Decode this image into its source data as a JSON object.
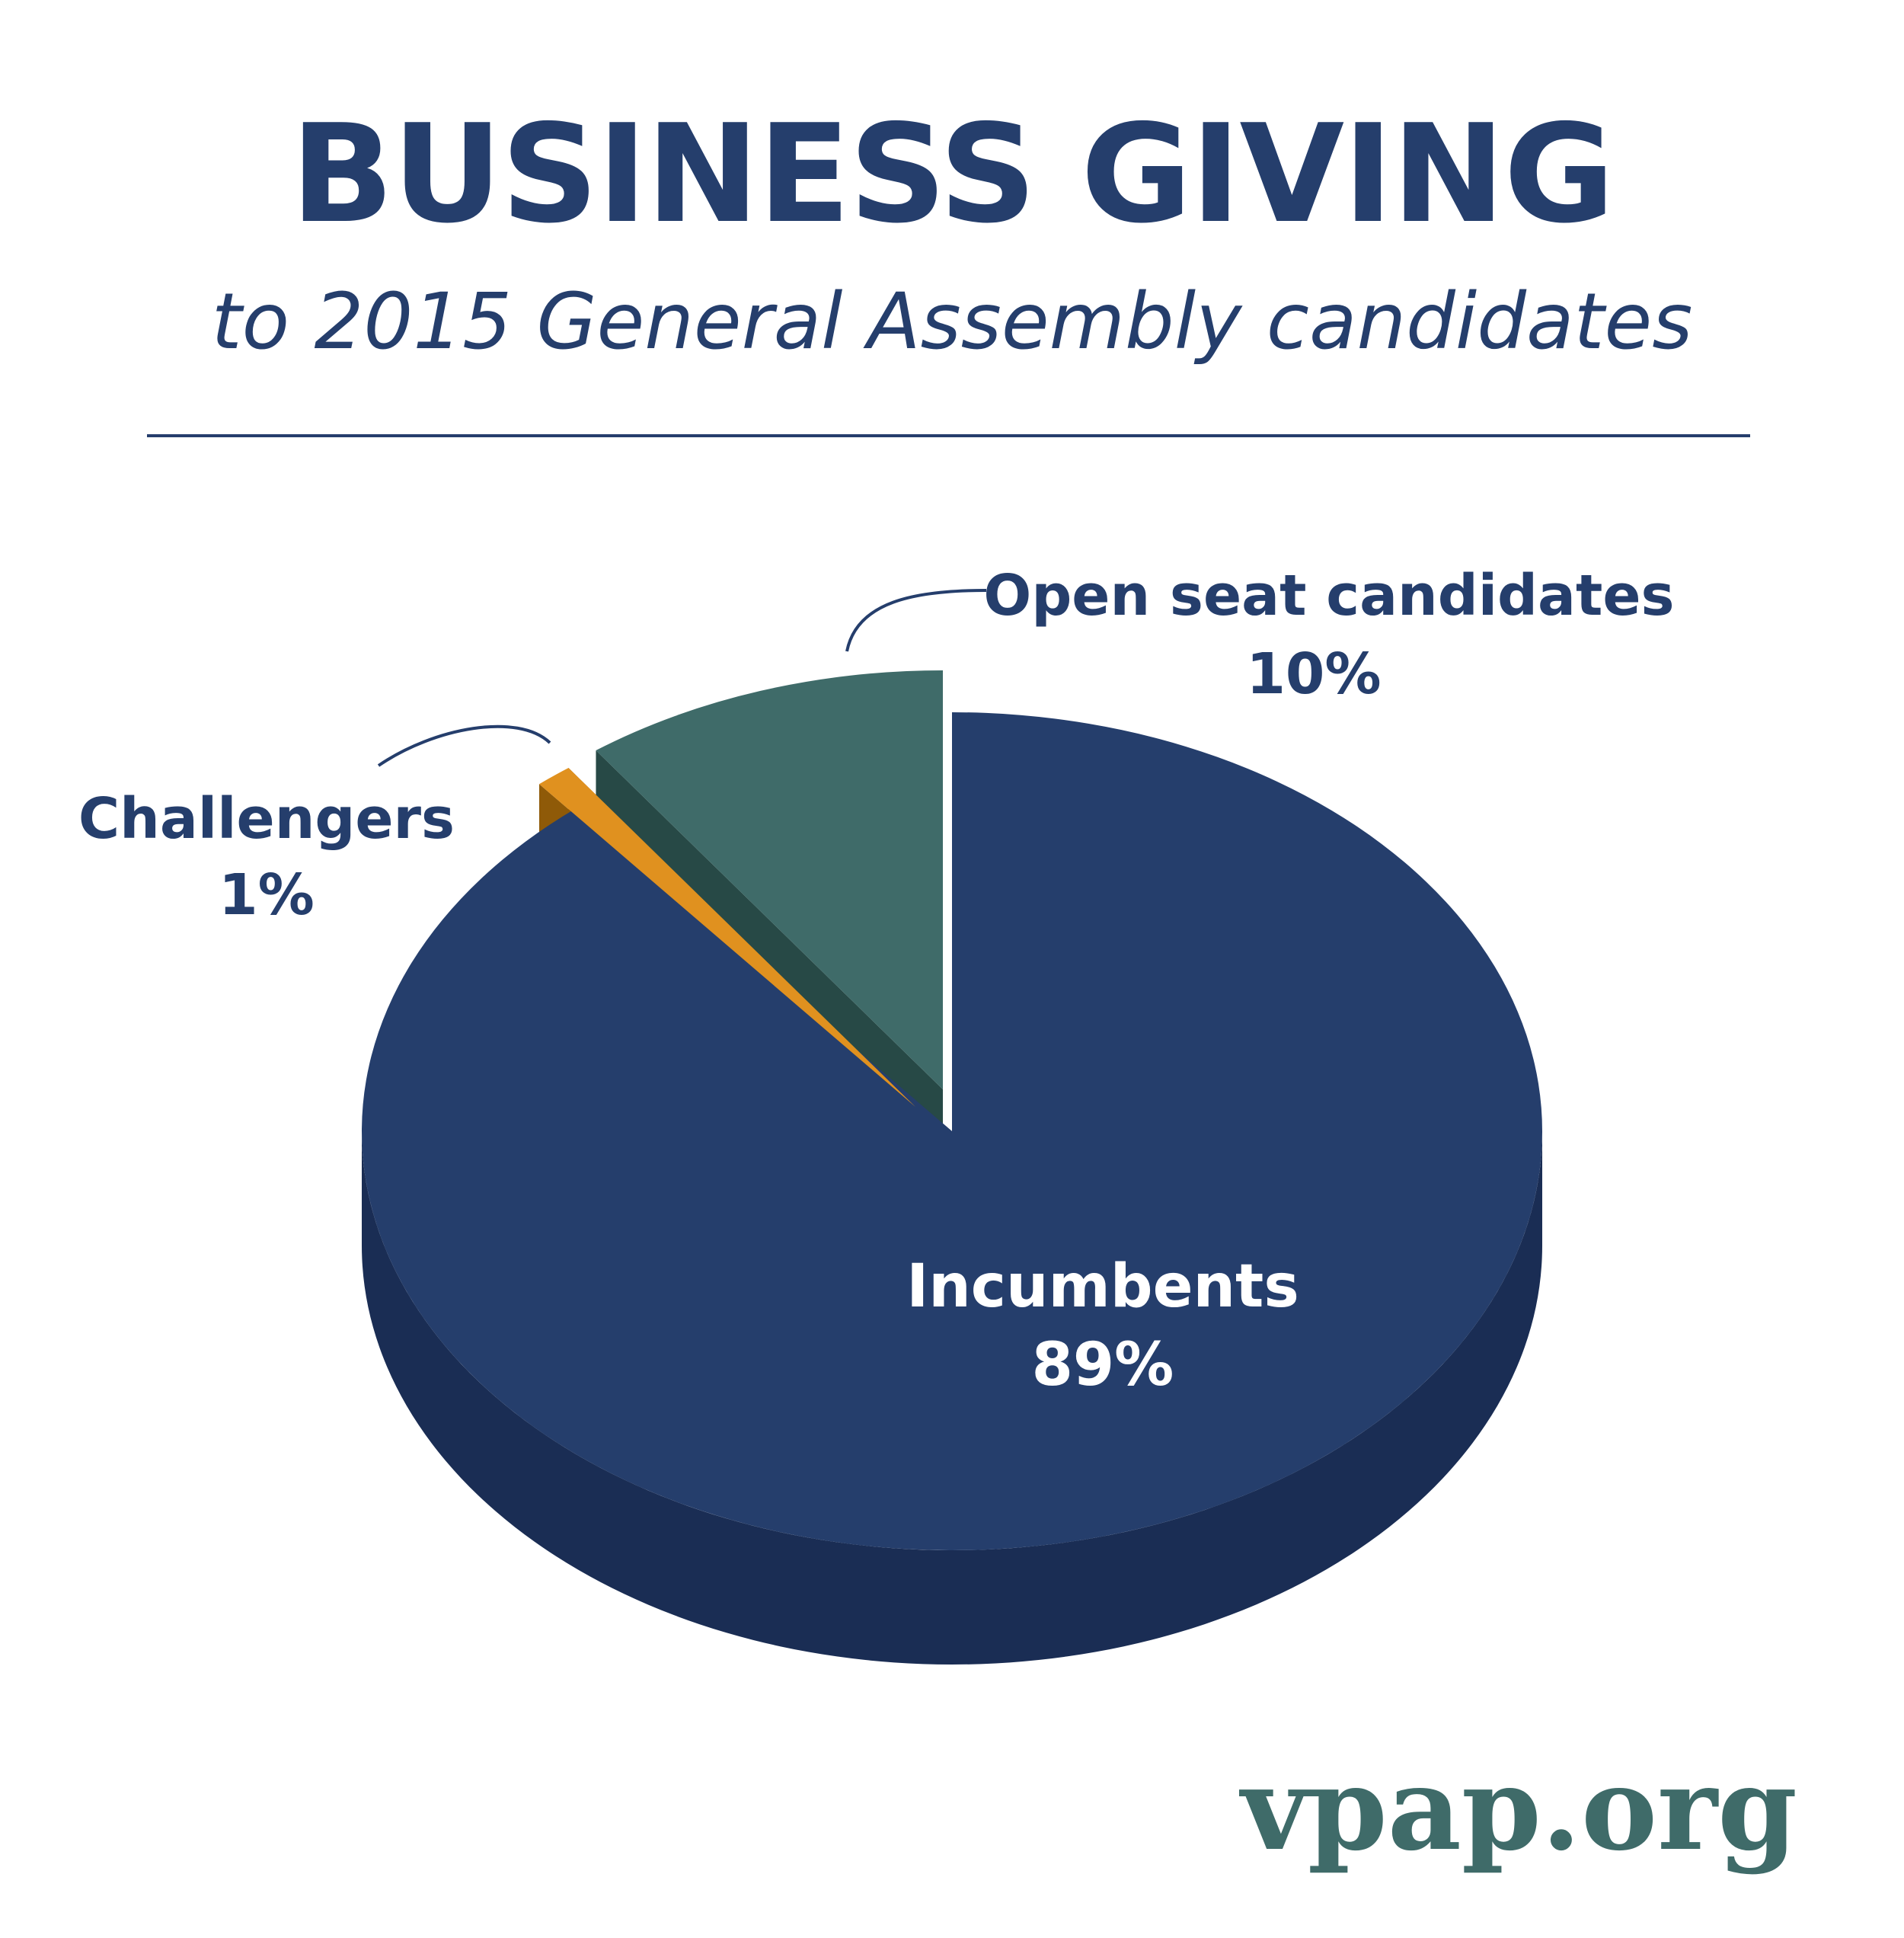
{
  "header": {
    "title": "BUSINESS GIVING",
    "subtitle": "to 2015 General Assembly candidates"
  },
  "chart_data": {
    "type": "pie",
    "title": "BUSINESS GIVING",
    "subtitle": "to 2015 General Assembly candidates",
    "slices": [
      {
        "name": "Incumbents",
        "label": "Incumbents",
        "value": 89,
        "value_label": "89%",
        "color": "#253e6c",
        "side_color": "#1a2d54",
        "label_color": "#ffffff"
      },
      {
        "name": "Challengers",
        "label": "Challengers",
        "value": 1,
        "value_label": "1%",
        "color": "#e0911f",
        "side_color": "#8f5a08",
        "label_color": "#253e6c"
      },
      {
        "name": "Open seat candidates",
        "label": "Open seat candidates",
        "value": 10,
        "value_label": "10%",
        "color": "#3f6b69",
        "side_color": "#274946",
        "label_color": "#253e6c"
      }
    ],
    "legend": "none",
    "style": "3d-exploded"
  },
  "footer": {
    "brand": "vpap.org"
  }
}
